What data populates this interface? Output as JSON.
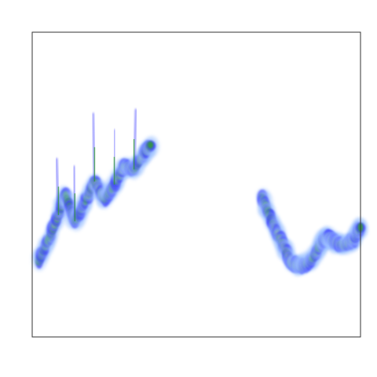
{
  "chart_data": {
    "type": "heatmap",
    "title": "",
    "xlabel": "",
    "ylabel": "",
    "grid": false,
    "legend": "none",
    "colormap": [
      "#dbeeff",
      "#9fc3ff",
      "#3b3bff",
      "#1a1aa8",
      "#33a02c",
      "#d4e157",
      "#ffc84d",
      "#ff6a4d"
    ],
    "series": [
      {
        "name": "",
        "x": [
          0.02,
          0.05,
          0.08,
          0.1,
          0.13,
          0.16,
          0.19,
          0.22,
          0.25,
          0.28,
          0.31,
          0.34,
          0.36
        ],
        "y": [
          0.25,
          0.32,
          0.4,
          0.47,
          0.38,
          0.44,
          0.51,
          0.45,
          0.5,
          0.56,
          0.55,
          0.6,
          0.63
        ],
        "intensity": [
          0.6,
          0.7,
          0.8,
          0.7,
          0.6,
          0.7,
          0.8,
          0.7,
          0.7,
          0.8,
          0.7,
          0.8,
          0.7
        ]
      },
      {
        "name": "",
        "x": [
          0.7,
          0.73,
          0.76,
          0.79,
          0.82,
          0.85,
          0.88,
          0.9,
          0.92,
          0.95,
          0.98,
          1.0
        ],
        "y": [
          0.46,
          0.38,
          0.31,
          0.24,
          0.23,
          0.25,
          0.31,
          0.33,
          0.31,
          0.3,
          0.32,
          0.36
        ],
        "intensity": [
          0.5,
          0.7,
          0.85,
          0.95,
          0.8,
          0.6,
          0.7,
          0.85,
          0.9,
          0.85,
          0.7,
          0.6
        ]
      }
    ],
    "xlim": [
      0,
      1
    ],
    "ylim": [
      0,
      1
    ]
  }
}
